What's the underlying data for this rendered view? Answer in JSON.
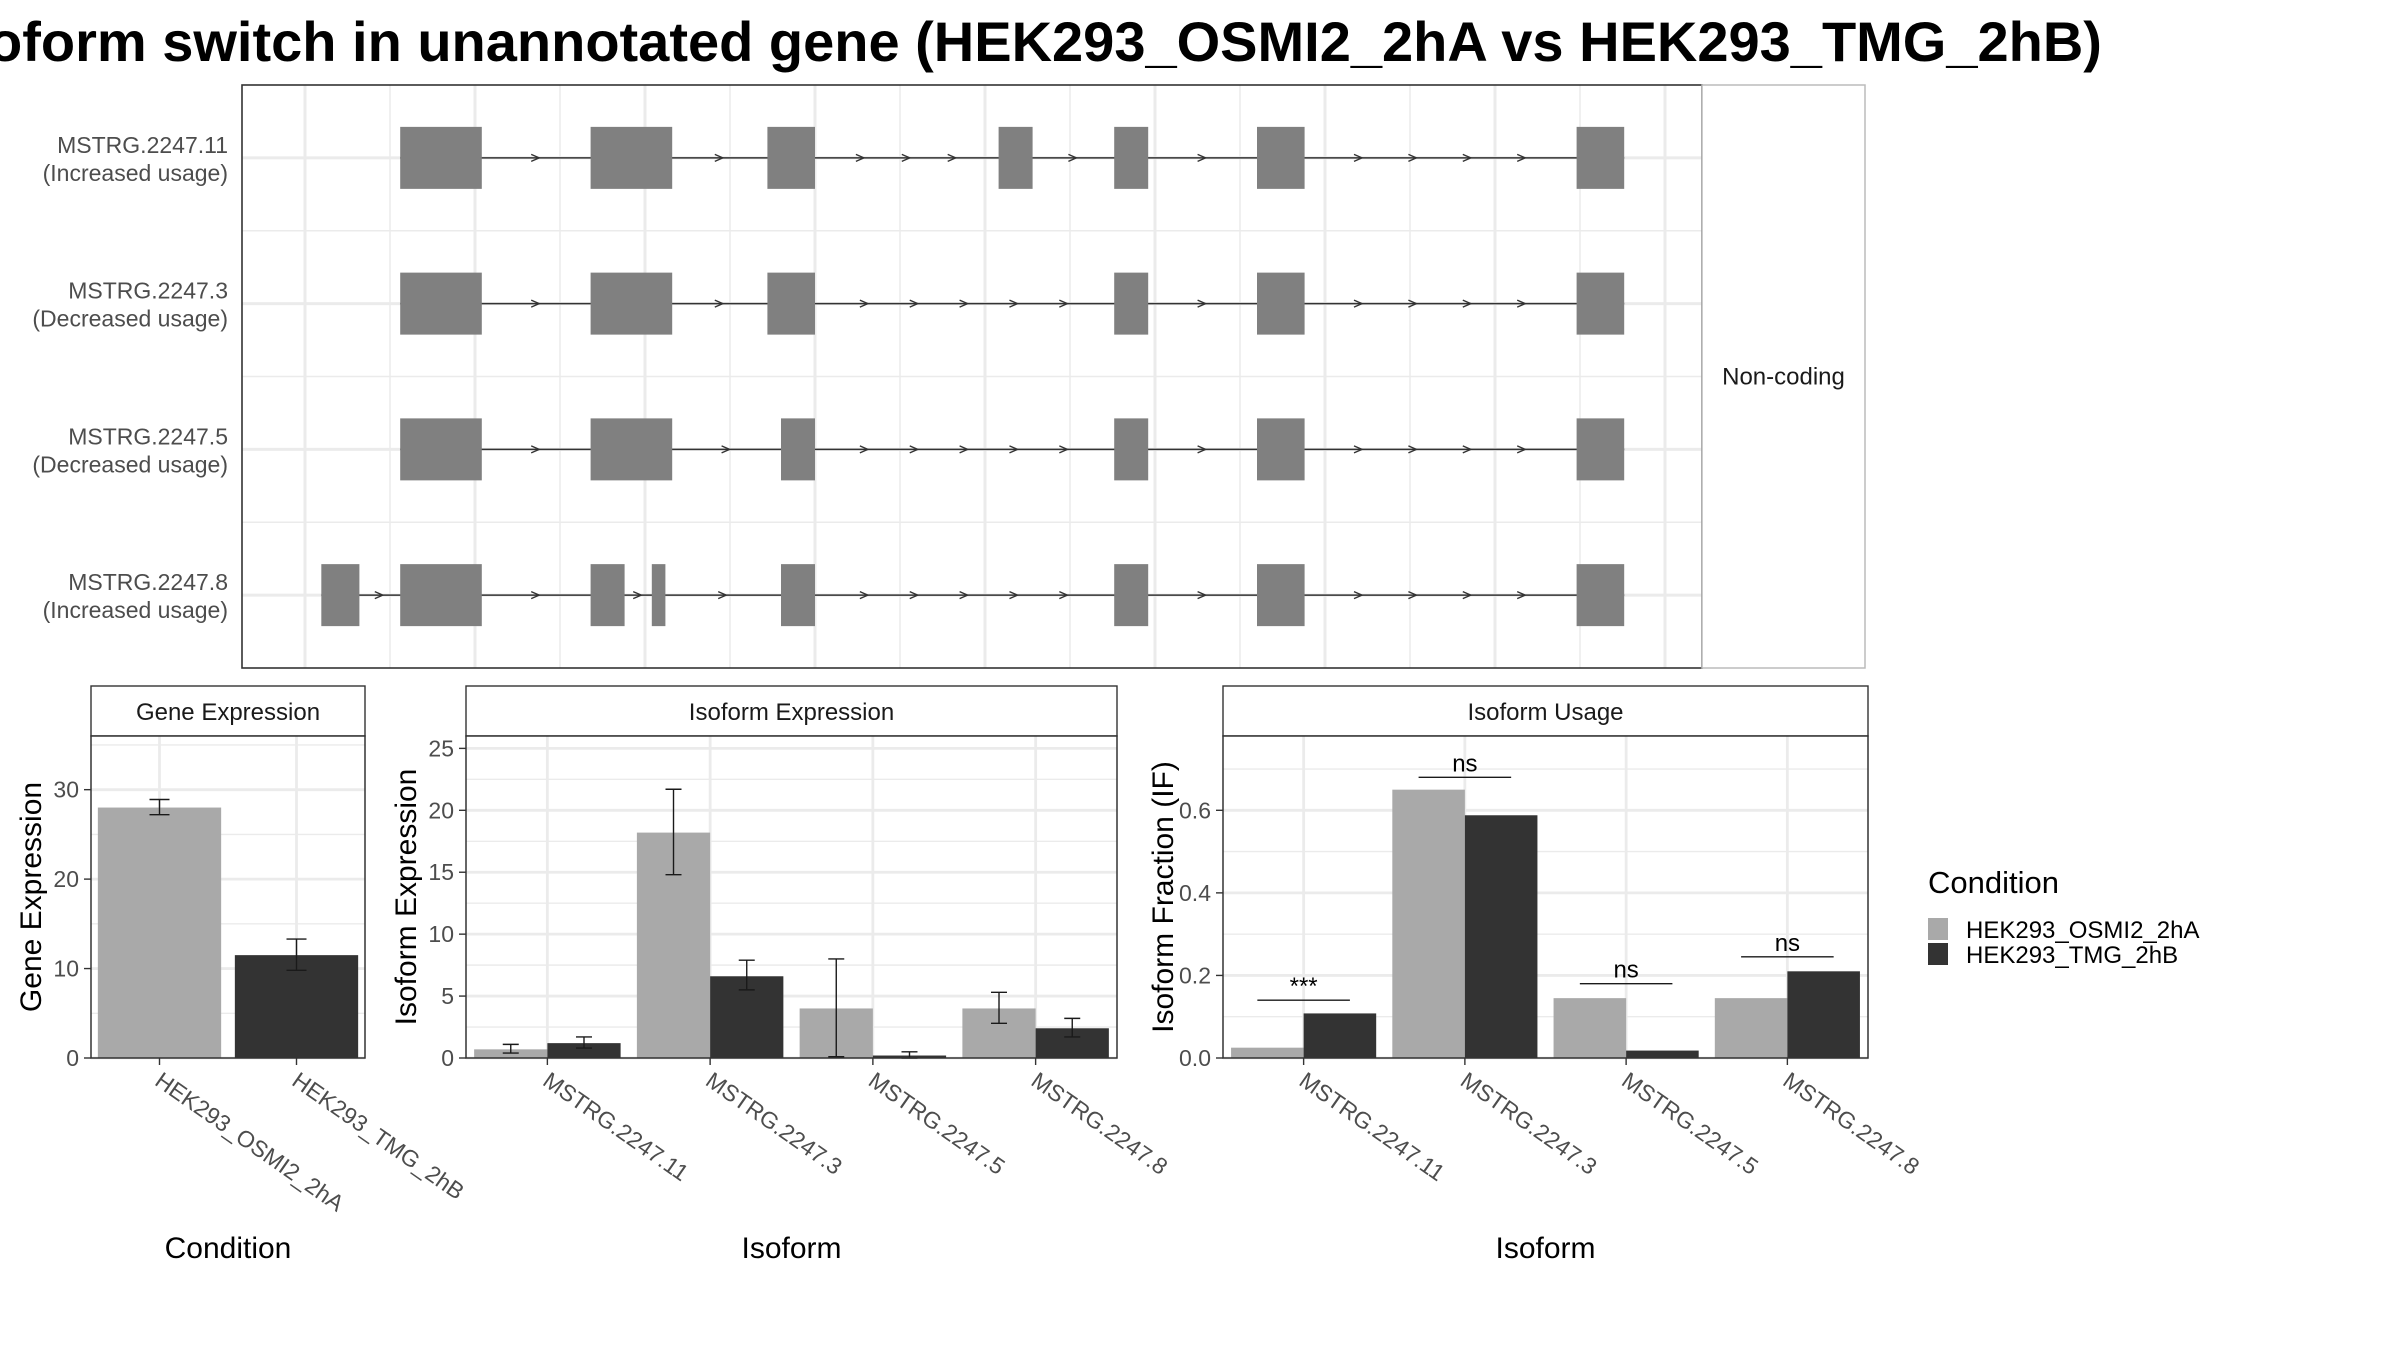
{
  "title": "oform switch in unannotated gene (HEK293_OSMI2_2hA vs HEK293_TMG_2hB)",
  "colors": {
    "cond_a": "#a9a9a9",
    "cond_b": "#333333",
    "exon": "#808080",
    "strip": "#ffffff",
    "grid": "#ebebeb"
  },
  "legend": {
    "title": "Condition",
    "items": [
      {
        "label": "HEK293_OSMI2_2hA",
        "color": "#a9a9a9"
      },
      {
        "label": "HEK293_TMG_2hB",
        "color": "#333333"
      }
    ]
  },
  "chart_data": [
    {
      "type": "gene-structure",
      "strip_label": "Non-coding",
      "transcripts": [
        {
          "id": "MSTRG.2247.11",
          "note": "(Increased usage)",
          "exons": [
            [
              0.07,
              0.13
            ],
            [
              0.21,
              0.27
            ],
            [
              0.34,
              0.375
            ],
            [
              0.51,
              0.535
            ],
            [
              0.595,
              0.62
            ],
            [
              0.7,
              0.735
            ],
            [
              0.935,
              0.97
            ]
          ]
        },
        {
          "id": "MSTRG.2247.3",
          "note": "(Decreased usage)",
          "exons": [
            [
              0.07,
              0.13
            ],
            [
              0.21,
              0.27
            ],
            [
              0.34,
              0.375
            ],
            [
              0.595,
              0.62
            ],
            [
              0.7,
              0.735
            ],
            [
              0.935,
              0.97
            ]
          ]
        },
        {
          "id": "MSTRG.2247.5",
          "note": "(Decreased usage)",
          "exons": [
            [
              0.07,
              0.13
            ],
            [
              0.21,
              0.27
            ],
            [
              0.35,
              0.375
            ],
            [
              0.595,
              0.62
            ],
            [
              0.7,
              0.735
            ],
            [
              0.935,
              0.97
            ]
          ]
        },
        {
          "id": "MSTRG.2247.8",
          "note": "(Increased usage)",
          "exons": [
            [
              0.012,
              0.04
            ],
            [
              0.07,
              0.13
            ],
            [
              0.21,
              0.235
            ],
            [
              0.255,
              0.265
            ],
            [
              0.35,
              0.375
            ],
            [
              0.595,
              0.62
            ],
            [
              0.7,
              0.735
            ],
            [
              0.935,
              0.97
            ]
          ]
        }
      ]
    },
    {
      "type": "bar",
      "strip_title": "Gene Expression",
      "xlabel": "Condition",
      "ylabel": "Gene Expression",
      "ylim": [
        0,
        36
      ],
      "yticks": [
        0,
        10,
        20,
        30
      ],
      "categories": [
        "HEK293_OSMI2_2hA",
        "HEK293_TMG_2hB"
      ],
      "values": [
        28,
        11.5
      ],
      "errors": [
        [
          27.2,
          28.9
        ],
        [
          9.8,
          13.3
        ]
      ]
    },
    {
      "type": "bar",
      "strip_title": "Isoform Expression",
      "xlabel": "Isoform",
      "ylabel": "Isoform Expression",
      "ylim": [
        0,
        26
      ],
      "yticks": [
        0,
        5,
        10,
        15,
        20,
        25
      ],
      "categories": [
        "MSTRG.2247.11",
        "MSTRG.2247.3",
        "MSTRG.2247.5",
        "MSTRG.2247.8"
      ],
      "series": [
        {
          "name": "HEK293_OSMI2_2hA",
          "values": [
            0.7,
            18.2,
            4.0,
            4.0
          ],
          "errors": [
            [
              0.4,
              1.1
            ],
            [
              14.8,
              21.7
            ],
            [
              0.1,
              8.0
            ],
            [
              2.8,
              5.3
            ]
          ]
        },
        {
          "name": "HEK293_TMG_2hB",
          "values": [
            1.2,
            6.6,
            0.2,
            2.4
          ],
          "errors": [
            [
              0.8,
              1.7
            ],
            [
              5.5,
              7.9
            ],
            [
              0.0,
              0.5
            ],
            [
              1.7,
              3.2
            ]
          ]
        }
      ]
    },
    {
      "type": "bar",
      "strip_title": "Isoform Usage",
      "xlabel": "Isoform",
      "ylabel": "Isoform Fraction (IF)",
      "ylim": [
        0,
        0.78
      ],
      "yticks": [
        0.0,
        0.2,
        0.4,
        0.6
      ],
      "ytick_labels": [
        "0.0",
        "0.2",
        "0.4",
        "0.6"
      ],
      "categories": [
        "MSTRG.2247.11",
        "MSTRG.2247.3",
        "MSTRG.2247.5",
        "MSTRG.2247.8"
      ],
      "series": [
        {
          "name": "HEK293_OSMI2_2hA",
          "values": [
            0.025,
            0.65,
            0.145,
            0.145
          ]
        },
        {
          "name": "HEK293_TMG_2hB",
          "values": [
            0.108,
            0.588,
            0.018,
            0.21
          ]
        }
      ],
      "significance": [
        "***",
        "ns",
        "ns",
        "ns"
      ],
      "sig_y": [
        0.14,
        0.68,
        0.18,
        0.245
      ]
    }
  ]
}
